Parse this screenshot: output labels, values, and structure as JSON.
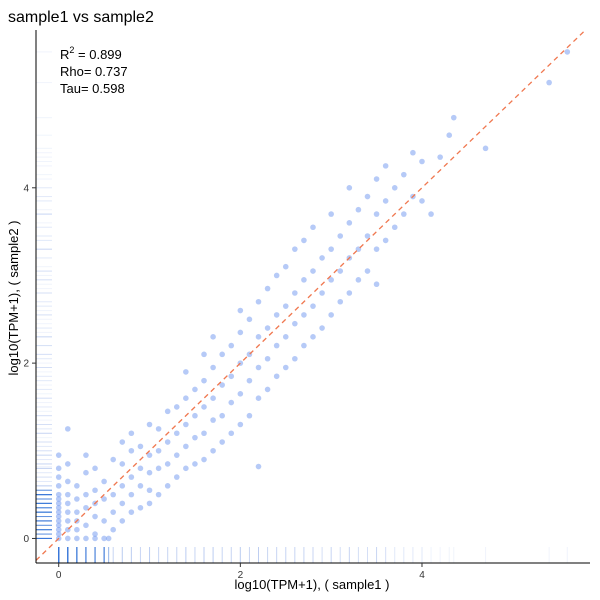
{
  "chart_data": {
    "type": "scatter",
    "title": "sample1  vs  sample2",
    "xlabel": "log10(TPM+1),  ( sample1 )",
    "ylabel": "log10(TPM+1),  ( sample2 )",
    "xlim": [
      -0.25,
      5.85
    ],
    "ylim": [
      -0.28,
      5.8
    ],
    "xticks": [
      0,
      2,
      4
    ],
    "yticks": [
      0,
      2,
      4
    ],
    "grid": false,
    "point_color": "#6e96f0",
    "diagonal_color": "#f07850",
    "rug_color": "#3a78d8",
    "annotations": {
      "r2_prefix": "R",
      "r2_sup": "2",
      "r2_value": " = 0.899",
      "rho": "Rho= 0.737",
      "tau": "Tau= 0.598"
    },
    "points": [
      [
        0.0,
        0.0
      ],
      [
        0.0,
        0.05
      ],
      [
        0.0,
        0.1
      ],
      [
        0.0,
        0.15
      ],
      [
        0.0,
        0.2
      ],
      [
        0.0,
        0.25
      ],
      [
        0.0,
        0.3
      ],
      [
        0.0,
        0.35
      ],
      [
        0.0,
        0.4
      ],
      [
        0.0,
        0.45
      ],
      [
        0.0,
        0.5
      ],
      [
        0.0,
        0.6
      ],
      [
        0.0,
        0.7
      ],
      [
        0.0,
        0.8
      ],
      [
        0.0,
        0.95
      ],
      [
        0.1,
        0.0
      ],
      [
        0.1,
        0.1
      ],
      [
        0.1,
        0.2
      ],
      [
        0.1,
        0.3
      ],
      [
        0.1,
        0.4
      ],
      [
        0.1,
        0.5
      ],
      [
        0.1,
        0.65
      ],
      [
        0.1,
        0.85
      ],
      [
        0.1,
        1.25
      ],
      [
        0.2,
        0.0
      ],
      [
        0.2,
        0.1
      ],
      [
        0.2,
        0.3
      ],
      [
        0.2,
        0.45
      ],
      [
        0.2,
        0.6
      ],
      [
        0.2,
        0.2
      ],
      [
        0.3,
        0.0
      ],
      [
        0.3,
        0.15
      ],
      [
        0.3,
        0.35
      ],
      [
        0.3,
        0.5
      ],
      [
        0.3,
        0.75
      ],
      [
        0.3,
        0.95
      ],
      [
        0.4,
        0.0
      ],
      [
        0.4,
        0.05
      ],
      [
        0.4,
        0.25
      ],
      [
        0.4,
        0.4
      ],
      [
        0.4,
        0.55
      ],
      [
        0.4,
        0.8
      ],
      [
        0.5,
        0.0
      ],
      [
        0.5,
        0.2
      ],
      [
        0.5,
        0.45
      ],
      [
        0.5,
        0.65
      ],
      [
        0.55,
        0.0
      ],
      [
        0.6,
        0.1
      ],
      [
        0.6,
        0.3
      ],
      [
        0.6,
        0.5
      ],
      [
        0.6,
        0.9
      ],
      [
        0.7,
        0.2
      ],
      [
        0.7,
        0.4
      ],
      [
        0.7,
        0.6
      ],
      [
        0.7,
        0.85
      ],
      [
        0.7,
        1.1
      ],
      [
        0.8,
        0.3
      ],
      [
        0.8,
        0.5
      ],
      [
        0.8,
        0.7
      ],
      [
        0.8,
        1.0
      ],
      [
        0.8,
        1.2
      ],
      [
        0.9,
        0.35
      ],
      [
        0.9,
        0.6
      ],
      [
        0.9,
        0.8
      ],
      [
        0.9,
        1.05
      ],
      [
        1.0,
        0.4
      ],
      [
        1.0,
        0.55
      ],
      [
        1.0,
        0.75
      ],
      [
        1.0,
        0.95
      ],
      [
        1.0,
        1.3
      ],
      [
        1.1,
        0.5
      ],
      [
        1.1,
        0.8
      ],
      [
        1.1,
        1.0
      ],
      [
        1.1,
        1.25
      ],
      [
        1.2,
        0.6
      ],
      [
        1.2,
        0.85
      ],
      [
        1.2,
        1.1
      ],
      [
        1.2,
        1.45
      ],
      [
        1.3,
        0.7
      ],
      [
        1.3,
        0.95
      ],
      [
        1.3,
        1.2
      ],
      [
        1.3,
        1.5
      ],
      [
        1.4,
        0.8
      ],
      [
        1.4,
        1.05
      ],
      [
        1.4,
        1.3
      ],
      [
        1.4,
        1.6
      ],
      [
        1.4,
        1.9
      ],
      [
        1.5,
        0.85
      ],
      [
        1.5,
        1.15
      ],
      [
        1.5,
        1.4
      ],
      [
        1.5,
        1.7
      ],
      [
        1.6,
        0.9
      ],
      [
        1.6,
        1.2
      ],
      [
        1.6,
        1.5
      ],
      [
        1.6,
        1.8
      ],
      [
        1.6,
        2.1
      ],
      [
        1.7,
        1.0
      ],
      [
        1.7,
        1.35
      ],
      [
        1.7,
        1.6
      ],
      [
        1.7,
        1.95
      ],
      [
        1.7,
        2.3
      ],
      [
        1.8,
        1.1
      ],
      [
        1.8,
        1.4
      ],
      [
        1.8,
        1.75
      ],
      [
        1.8,
        2.1
      ],
      [
        1.9,
        1.2
      ],
      [
        1.9,
        1.55
      ],
      [
        1.9,
        1.85
      ],
      [
        1.9,
        2.2
      ],
      [
        2.0,
        1.3
      ],
      [
        2.0,
        1.65
      ],
      [
        2.0,
        2.0
      ],
      [
        2.0,
        2.35
      ],
      [
        2.0,
        2.6
      ],
      [
        2.1,
        1.4
      ],
      [
        2.1,
        1.8
      ],
      [
        2.1,
        2.1
      ],
      [
        2.1,
        2.5
      ],
      [
        2.2,
        0.82
      ],
      [
        2.2,
        1.6
      ],
      [
        2.2,
        1.95
      ],
      [
        2.2,
        2.3
      ],
      [
        2.2,
        2.7
      ],
      [
        2.3,
        1.7
      ],
      [
        2.3,
        2.05
      ],
      [
        2.3,
        2.4
      ],
      [
        2.3,
        2.85
      ],
      [
        2.4,
        1.85
      ],
      [
        2.4,
        2.2
      ],
      [
        2.4,
        2.55
      ],
      [
        2.4,
        3.0
      ],
      [
        2.5,
        1.95
      ],
      [
        2.5,
        2.3
      ],
      [
        2.5,
        2.65
      ],
      [
        2.5,
        3.1
      ],
      [
        2.6,
        2.05
      ],
      [
        2.6,
        2.45
      ],
      [
        2.6,
        2.8
      ],
      [
        2.6,
        3.3
      ],
      [
        2.7,
        2.2
      ],
      [
        2.7,
        2.55
      ],
      [
        2.7,
        2.95
      ],
      [
        2.7,
        3.4
      ],
      [
        2.8,
        2.3
      ],
      [
        2.8,
        2.65
      ],
      [
        2.8,
        3.05
      ],
      [
        2.8,
        3.55
      ],
      [
        2.9,
        2.4
      ],
      [
        2.9,
        2.8
      ],
      [
        2.9,
        3.2
      ],
      [
        3.0,
        2.55
      ],
      [
        3.0,
        2.95
      ],
      [
        3.0,
        3.3
      ],
      [
        3.0,
        3.7
      ],
      [
        3.1,
        2.7
      ],
      [
        3.1,
        3.05
      ],
      [
        3.1,
        3.45
      ],
      [
        3.2,
        2.8
      ],
      [
        3.2,
        3.2
      ],
      [
        3.2,
        3.6
      ],
      [
        3.2,
        4.0
      ],
      [
        3.3,
        2.95
      ],
      [
        3.3,
        3.3
      ],
      [
        3.3,
        3.75
      ],
      [
        3.4,
        3.05
      ],
      [
        3.4,
        3.45
      ],
      [
        3.4,
        3.9
      ],
      [
        3.5,
        2.9
      ],
      [
        3.5,
        3.3
      ],
      [
        3.5,
        3.7
      ],
      [
        3.5,
        4.1
      ],
      [
        3.6,
        3.4
      ],
      [
        3.6,
        3.85
      ],
      [
        3.6,
        4.25
      ],
      [
        3.7,
        3.55
      ],
      [
        3.7,
        4.0
      ],
      [
        3.8,
        3.7
      ],
      [
        3.8,
        4.15
      ],
      [
        3.9,
        3.9
      ],
      [
        3.9,
        4.4
      ],
      [
        4.0,
        3.85
      ],
      [
        4.0,
        4.3
      ],
      [
        4.1,
        3.7
      ],
      [
        4.2,
        4.35
      ],
      [
        4.3,
        4.6
      ],
      [
        4.35,
        4.8
      ],
      [
        4.7,
        4.45
      ],
      [
        5.4,
        5.2
      ],
      [
        5.6,
        5.55
      ]
    ]
  }
}
